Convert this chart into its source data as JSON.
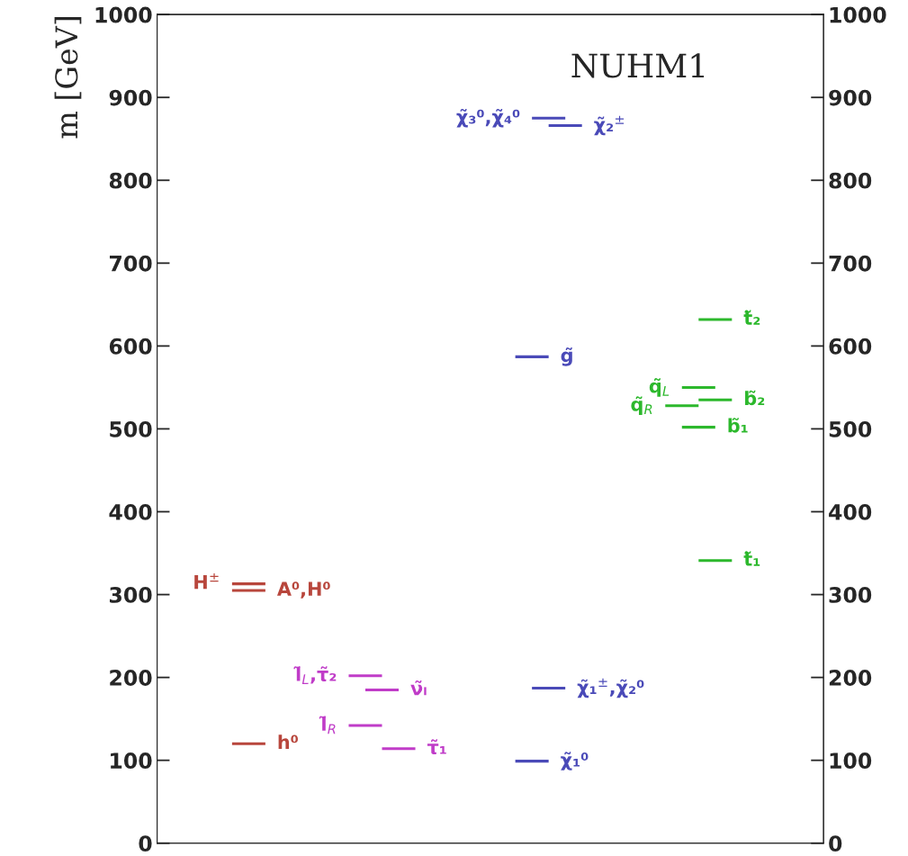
{
  "chart_data": {
    "type": "line",
    "categories": [
      null,
      null,
      null,
      null,
      null,
      null,
      null,
      null,
      null,
      null,
      null,
      null,
      null,
      null,
      null,
      null,
      null,
      null,
      null,
      null,
      null,
      null,
      null,
      null,
      null,
      null,
      null,
      null,
      null,
      null,
      null,
      null,
      null,
      null,
      null,
      null,
      null,
      null,
      null,
      null
    ],
    "ylabel": "m [GeV]",
    "annotations": [
      "NUHM1"
    ],
    "ylim": [
      0,
      1000
    ],
    "yticks": [
      0,
      100,
      200,
      300,
      400,
      500,
      600,
      700,
      800,
      900,
      1000
    ],
    "y2lim": [
      0,
      1000
    ],
    "y2ticks": [
      0,
      100,
      200,
      300,
      400,
      500,
      600,
      700,
      800,
      900,
      1000
    ],
    "tick_labels": "y",
    "grid": false,
    "legend": false,
    "marker": "none",
    "line_style": "solid",
    "series": [
      {
        "name": "h⁰",
        "color": "#b8463c",
        "values": [
          null,
          null,
          null,
          null,
          120,
          120,
          120,
          null,
          null,
          null,
          null,
          null,
          null,
          null,
          null,
          null,
          null,
          null,
          null,
          null,
          null,
          null,
          null,
          null,
          null,
          null,
          null,
          null,
          null,
          null,
          null,
          null,
          null,
          null,
          null,
          null,
          null,
          null,
          null,
          null
        ]
      },
      {
        "name": "H$^{±}$",
        "color": "#b8463c",
        "values": [
          null,
          null,
          null,
          null,
          313,
          313,
          313,
          null,
          null,
          null,
          null,
          null,
          null,
          null,
          null,
          null,
          null,
          null,
          null,
          null,
          null,
          null,
          null,
          null,
          null,
          null,
          null,
          null,
          null,
          null,
          null,
          null,
          null,
          null,
          null,
          null,
          null,
          null,
          null,
          null
        ]
      },
      {
        "name": "A⁰,H⁰",
        "color": "#b8463c",
        "values": [
          null,
          null,
          null,
          null,
          305,
          305,
          305,
          null,
          null,
          null,
          null,
          null,
          null,
          null,
          null,
          null,
          null,
          null,
          null,
          null,
          null,
          null,
          null,
          null,
          null,
          null,
          null,
          null,
          null,
          null,
          null,
          null,
          null,
          null,
          null,
          null,
          null,
          null,
          null,
          null
        ]
      },
      {
        "name": "l̃$_{L}$,τ̃₂",
        "color": "#c03cc8",
        "values": [
          null,
          null,
          null,
          null,
          null,
          null,
          null,
          null,
          null,
          null,
          null,
          202,
          202,
          202,
          null,
          null,
          null,
          null,
          null,
          null,
          null,
          null,
          null,
          null,
          null,
          null,
          null,
          null,
          null,
          null,
          null,
          null,
          null,
          null,
          null,
          null,
          null,
          null,
          null,
          null
        ]
      },
      {
        "name": "ν̃ₗ",
        "color": "#c03cc8",
        "values": [
          null,
          null,
          null,
          null,
          null,
          null,
          null,
          null,
          null,
          null,
          null,
          null,
          185,
          185,
          185,
          null,
          null,
          null,
          null,
          null,
          null,
          null,
          null,
          null,
          null,
          null,
          null,
          null,
          null,
          null,
          null,
          null,
          null,
          null,
          null,
          null,
          null,
          null,
          null,
          null
        ]
      },
      {
        "name": "l̃$_{R}$",
        "color": "#c03cc8",
        "values": [
          null,
          null,
          null,
          null,
          null,
          null,
          null,
          null,
          null,
          null,
          null,
          142,
          142,
          142,
          null,
          null,
          null,
          null,
          null,
          null,
          null,
          null,
          null,
          null,
          null,
          null,
          null,
          null,
          null,
          null,
          null,
          null,
          null,
          null,
          null,
          null,
          null,
          null,
          null,
          null
        ]
      },
      {
        "name": "τ̃₁",
        "color": "#c03cc8",
        "values": [
          null,
          null,
          null,
          null,
          null,
          null,
          null,
          null,
          null,
          null,
          null,
          null,
          null,
          114,
          114,
          114,
          null,
          null,
          null,
          null,
          null,
          null,
          null,
          null,
          null,
          null,
          null,
          null,
          null,
          null,
          null,
          null,
          null,
          null,
          null,
          null,
          null,
          null,
          null,
          null
        ]
      },
      {
        "name": "χ̃₁$^{±}$,χ̃₂⁰",
        "color": "#4a4ab8",
        "values": [
          null,
          null,
          null,
          null,
          null,
          null,
          null,
          null,
          null,
          null,
          null,
          null,
          null,
          null,
          null,
          null,
          null,
          null,
          null,
          null,
          null,
          null,
          187,
          187,
          187,
          null,
          null,
          null,
          null,
          null,
          null,
          null,
          null,
          null,
          null,
          null,
          null,
          null,
          null,
          null
        ]
      },
      {
        "name": "χ̃₁⁰",
        "color": "#4a4ab8",
        "values": [
          null,
          null,
          null,
          null,
          null,
          null,
          null,
          null,
          null,
          null,
          null,
          null,
          null,
          null,
          null,
          null,
          null,
          null,
          null,
          null,
          null,
          99,
          99,
          99,
          null,
          null,
          null,
          null,
          null,
          null,
          null,
          null,
          null,
          null,
          null,
          null,
          null,
          null,
          null,
          null
        ]
      },
      {
        "name": "g̃",
        "color": "#4a4ab8",
        "values": [
          null,
          null,
          null,
          null,
          null,
          null,
          null,
          null,
          null,
          null,
          null,
          null,
          null,
          null,
          null,
          null,
          null,
          null,
          null,
          null,
          null,
          587,
          587,
          587,
          null,
          null,
          null,
          null,
          null,
          null,
          null,
          null,
          null,
          null,
          null,
          null,
          null,
          null,
          null,
          null
        ]
      },
      {
        "name": "χ̃₃⁰,χ̃₄⁰",
        "color": "#4a4ab8",
        "values": [
          null,
          null,
          null,
          null,
          null,
          null,
          null,
          null,
          null,
          null,
          null,
          null,
          null,
          null,
          null,
          null,
          null,
          null,
          null,
          null,
          null,
          null,
          875,
          875,
          875,
          null,
          null,
          null,
          null,
          null,
          null,
          null,
          null,
          null,
          null,
          null,
          null,
          null,
          null,
          null
        ]
      },
      {
        "name": "χ̃₂$^{±}$",
        "color": "#4a4ab8",
        "values": [
          null,
          null,
          null,
          null,
          null,
          null,
          null,
          null,
          null,
          null,
          null,
          null,
          null,
          null,
          null,
          null,
          null,
          null,
          null,
          null,
          null,
          null,
          null,
          866,
          866,
          866,
          null,
          null,
          null,
          null,
          null,
          null,
          null,
          null,
          null,
          null,
          null,
          null,
          null,
          null
        ]
      },
      {
        "name": "t̃₂",
        "color": "#2cb82c",
        "values": [
          null,
          null,
          null,
          null,
          null,
          null,
          null,
          null,
          null,
          null,
          null,
          null,
          null,
          null,
          null,
          null,
          null,
          null,
          null,
          null,
          null,
          null,
          null,
          null,
          null,
          null,
          null,
          null,
          null,
          null,
          null,
          null,
          632,
          632,
          632,
          null,
          null,
          null,
          null,
          null
        ]
      },
      {
        "name": "q̃$_{R}$",
        "color": "#2cb82c",
        "values": [
          null,
          null,
          null,
          null,
          null,
          null,
          null,
          null,
          null,
          null,
          null,
          null,
          null,
          null,
          null,
          null,
          null,
          null,
          null,
          null,
          null,
          null,
          null,
          null,
          null,
          null,
          null,
          null,
          null,
          null,
          528,
          528,
          528,
          null,
          null,
          null,
          null,
          null,
          null,
          null
        ]
      },
      {
        "name": "q̃$_{L}$",
        "color": "#2cb82c",
        "values": [
          null,
          null,
          null,
          null,
          null,
          null,
          null,
          null,
          null,
          null,
          null,
          null,
          null,
          null,
          null,
          null,
          null,
          null,
          null,
          null,
          null,
          null,
          null,
          null,
          null,
          null,
          null,
          null,
          null,
          null,
          null,
          550,
          550,
          550,
          null,
          null,
          null,
          null,
          null,
          null
        ]
      },
      {
        "name": "b̃₁",
        "color": "#2cb82c",
        "values": [
          null,
          null,
          null,
          null,
          null,
          null,
          null,
          null,
          null,
          null,
          null,
          null,
          null,
          null,
          null,
          null,
          null,
          null,
          null,
          null,
          null,
          null,
          null,
          null,
          null,
          null,
          null,
          null,
          null,
          null,
          null,
          502,
          502,
          502,
          null,
          null,
          null,
          null,
          null,
          null
        ]
      },
      {
        "name": "b̃₂",
        "color": "#2cb82c",
        "values": [
          null,
          null,
          null,
          null,
          null,
          null,
          null,
          null,
          null,
          null,
          null,
          null,
          null,
          null,
          null,
          null,
          null,
          null,
          null,
          null,
          null,
          null,
          null,
          null,
          null,
          null,
          null,
          null,
          null,
          null,
          null,
          null,
          535,
          535,
          535,
          null,
          null,
          null,
          null,
          null
        ]
      },
      {
        "name": "t̃₁",
        "color": "#2cb82c",
        "values": [
          null,
          null,
          null,
          null,
          null,
          null,
          null,
          null,
          null,
          null,
          null,
          null,
          null,
          null,
          null,
          null,
          null,
          null,
          null,
          null,
          null,
          null,
          null,
          null,
          null,
          null,
          null,
          null,
          null,
          null,
          null,
          null,
          341,
          341,
          341,
          null,
          null,
          null,
          null,
          null
        ]
      }
    ]
  }
}
